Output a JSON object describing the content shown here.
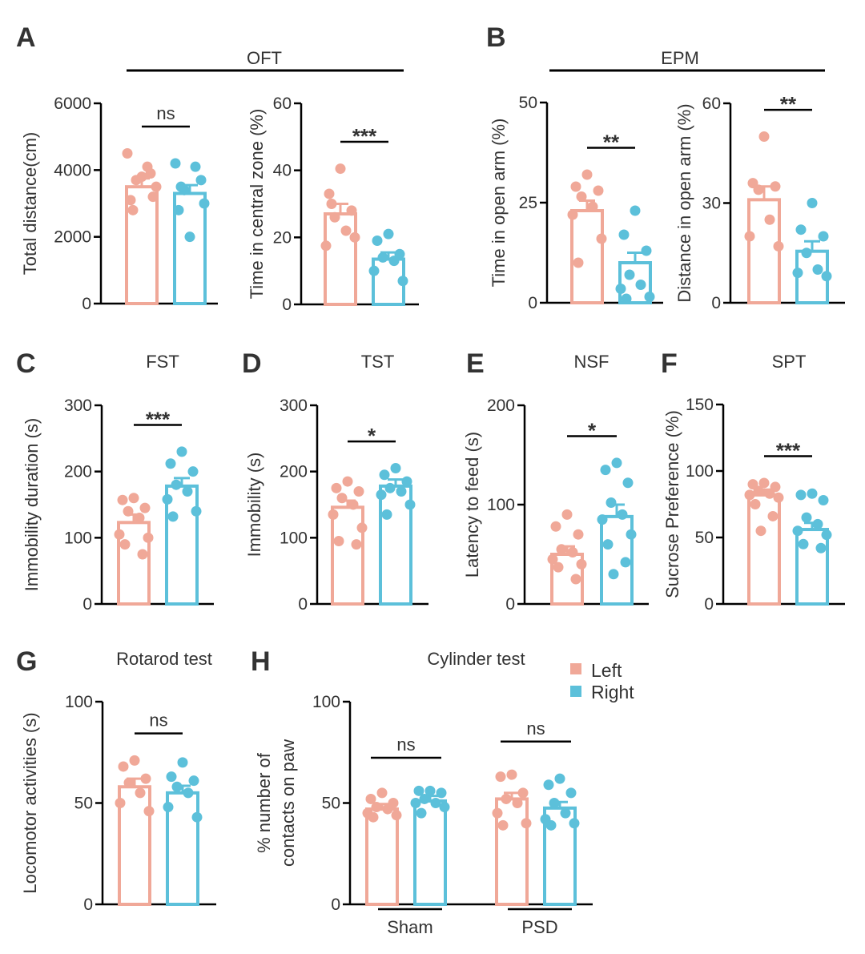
{
  "colors": {
    "left": "#f0a898",
    "right": "#5cc0da",
    "ink": "#000000",
    "text": "#333333"
  },
  "legend": {
    "items": [
      {
        "label": "Left",
        "color": "#f0a898"
      },
      {
        "label": "Right",
        "color": "#5cc0da"
      }
    ]
  },
  "group_titles": {
    "oft": "OFT",
    "epm": "EPM"
  },
  "chart_data": [
    {
      "id": "oft_dist",
      "letter": "A",
      "type": "bar",
      "ylabel": "Total distance(cm)",
      "ylim": [
        0,
        6000
      ],
      "yticks": [
        0,
        2000,
        4000,
        6000
      ],
      "ytick_labels": [
        "0",
        "2000",
        "4000",
        "6000"
      ],
      "categories": [
        "Left",
        "Right"
      ],
      "values": [
        3500,
        3300
      ],
      "sem": [
        250,
        250
      ],
      "points": [
        [
          3800,
          3100,
          3200,
          3700,
          4100,
          4500,
          3500,
          2800,
          3900
        ],
        [
          2000,
          2800,
          3700,
          3400,
          4100,
          4200,
          3000,
          3500
        ]
      ],
      "significance": "ns"
    },
    {
      "id": "oft_center",
      "type": "bar",
      "ylabel": "Time in central zone (%)",
      "ylim": [
        0,
        60
      ],
      "yticks": [
        0,
        20,
        40,
        60
      ],
      "ytick_labels": [
        "0",
        "20",
        "40",
        "60"
      ],
      "categories": [
        "Left",
        "Right"
      ],
      "values": [
        27,
        13.5
      ],
      "sem": [
        3,
        2
      ],
      "points": [
        [
          40.5,
          33,
          28,
          26,
          22,
          17.5,
          20,
          30
        ],
        [
          21,
          19,
          15,
          14,
          13,
          10,
          7
        ]
      ],
      "significance": "***"
    },
    {
      "id": "epm_time",
      "letter": "B",
      "type": "bar",
      "ylabel": "Time in open arm (%)",
      "ylim": [
        0,
        50
      ],
      "yticks": [
        0,
        25,
        50
      ],
      "ytick_labels": [
        "0",
        "25",
        "50"
      ],
      "categories": [
        "Left",
        "Right"
      ],
      "values": [
        23,
        10
      ],
      "sem": [
        2.5,
        2.5
      ],
      "points": [
        [
          32,
          29,
          28,
          26.5,
          24,
          22,
          16,
          10
        ],
        [
          23,
          17,
          13,
          7,
          4.5,
          3.5,
          1.5,
          1
        ]
      ],
      "significance": "**"
    },
    {
      "id": "epm_dist",
      "type": "bar",
      "ylabel": "Distance in open arm (%)",
      "ylim": [
        0,
        60
      ],
      "yticks": [
        0,
        30,
        60
      ],
      "ytick_labels": [
        "0",
        "30",
        "60"
      ],
      "categories": [
        "Left",
        "Right"
      ],
      "values": [
        31,
        15.5
      ],
      "sem": [
        4,
        3
      ],
      "points": [
        [
          50,
          36,
          35,
          34,
          25,
          20,
          17
        ],
        [
          30,
          22,
          20,
          15,
          10,
          9,
          8
        ]
      ],
      "significance": "**"
    },
    {
      "id": "fst",
      "letter": "C",
      "title": "FST",
      "type": "bar",
      "ylabel": "Immobility duration (s)",
      "ylim": [
        0,
        300
      ],
      "yticks": [
        0,
        100,
        200,
        300
      ],
      "ytick_labels": [
        "0",
        "100",
        "200",
        "300"
      ],
      "categories": [
        "Left",
        "Right"
      ],
      "values": [
        123,
        178
      ],
      "sem": [
        12,
        12
      ],
      "points": [
        [
          160,
          157,
          145,
          140,
          130,
          105,
          100,
          90,
          75
        ],
        [
          230,
          212,
          200,
          180,
          170,
          158,
          140,
          132
        ]
      ],
      "significance": "***"
    },
    {
      "id": "tst",
      "letter": "D",
      "title": "TST",
      "type": "bar",
      "ylabel": "Immobility  (s)",
      "ylim": [
        0,
        300
      ],
      "yticks": [
        0,
        100,
        200,
        300
      ],
      "ytick_labels": [
        "0",
        "100",
        "200",
        "300"
      ],
      "categories": [
        "Left",
        "Right"
      ],
      "values": [
        146,
        178
      ],
      "sem": [
        10,
        10
      ],
      "points": [
        [
          185,
          175,
          170,
          160,
          150,
          135,
          115,
          95,
          90
        ],
        [
          205,
          195,
          185,
          175,
          170,
          165,
          150,
          135
        ]
      ],
      "significance": "*"
    },
    {
      "id": "nsf",
      "letter": "E",
      "title": "NSF",
      "type": "bar",
      "ylabel": "Latency to feed  (s)",
      "ylim": [
        0,
        200
      ],
      "yticks": [
        0,
        100,
        200
      ],
      "ytick_labels": [
        "0",
        "100",
        "200"
      ],
      "categories": [
        "Left",
        "Right"
      ],
      "values": [
        50,
        88
      ],
      "sem": [
        8,
        12
      ],
      "points": [
        [
          90,
          78,
          70,
          55,
          52,
          45,
          40,
          37,
          25
        ],
        [
          142,
          135,
          122,
          102,
          90,
          85,
          70,
          60,
          42,
          30
        ]
      ],
      "significance": "*"
    },
    {
      "id": "spt",
      "letter": "F",
      "title": "SPT",
      "type": "bar",
      "ylabel": "Sucrose Preference (%)",
      "ylim": [
        0,
        150
      ],
      "yticks": [
        0,
        50,
        100,
        150
      ],
      "ytick_labels": [
        "0",
        "50",
        "100",
        "150"
      ],
      "categories": [
        "Left",
        "Right"
      ],
      "values": [
        82,
        56
      ],
      "sem": [
        4,
        5
      ],
      "points": [
        [
          91,
          90,
          88,
          85,
          83,
          82,
          80,
          75,
          66,
          55
        ],
        [
          83,
          82,
          78,
          65,
          60,
          55,
          52,
          45,
          42
        ]
      ],
      "significance": "***"
    },
    {
      "id": "rotarod",
      "letter": "G",
      "title": "Rotarod test",
      "type": "bar",
      "ylabel": "Locomotor activities (s)",
      "ylim": [
        0,
        100
      ],
      "yticks": [
        0,
        50,
        100
      ],
      "ytick_labels": [
        "0",
        "50",
        "100"
      ],
      "categories": [
        "Left",
        "Right"
      ],
      "values": [
        58,
        55
      ],
      "sem": [
        4,
        3.5
      ],
      "points": [
        [
          71,
          68,
          62,
          60,
          55,
          50,
          46
        ],
        [
          70,
          63,
          61,
          58,
          55,
          48,
          43
        ]
      ],
      "significance": "ns"
    },
    {
      "id": "cylinder",
      "letter": "H",
      "title": "Cylinder test",
      "type": "bar",
      "ylabel_lines": [
        "% number of",
        "contacts on paw"
      ],
      "ylim": [
        0,
        100
      ],
      "yticks": [
        0,
        50,
        100
      ],
      "ytick_labels": [
        "0",
        "50",
        "100"
      ],
      "groups": [
        "Sham",
        "PSD"
      ],
      "series": [
        {
          "name": "Left",
          "values": [
            47,
            52
          ],
          "sem": [
            2.5,
            3
          ]
        },
        {
          "name": "Right",
          "values": [
            51,
            47.5
          ],
          "sem": [
            2.5,
            3
          ]
        }
      ],
      "points": [
        [
          [
            55,
            52,
            50,
            48,
            47,
            45,
            44,
            43
          ],
          [
            64,
            63,
            55,
            52,
            50,
            45,
            40,
            39
          ]
        ],
        [
          [
            56,
            56,
            55,
            52,
            50,
            50,
            48,
            45
          ],
          [
            62,
            59,
            55,
            50,
            45,
            42,
            40,
            39
          ]
        ]
      ],
      "significance": [
        "ns",
        "ns"
      ]
    }
  ]
}
